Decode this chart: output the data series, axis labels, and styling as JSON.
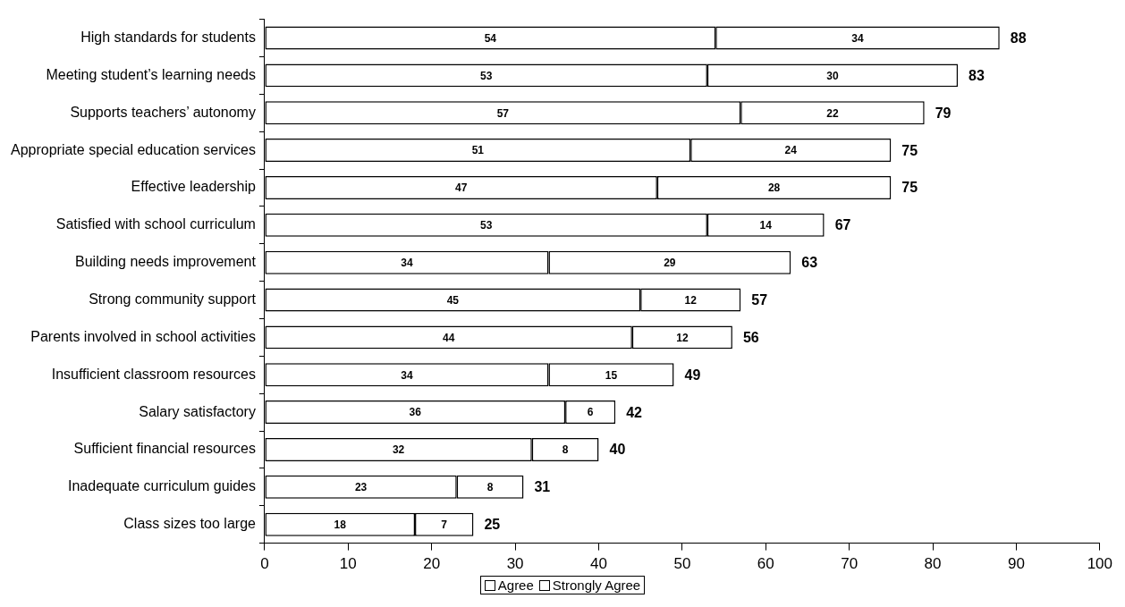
{
  "chart_data": {
    "type": "bar",
    "orientation": "horizontal",
    "stacked": true,
    "categories": [
      "High standards for students",
      "Meeting student’s learning needs",
      "Supports teachers’ autonomy",
      "Appropriate special education services",
      "Effective leadership",
      "Satisfied with school curriculum",
      "Building needs improvement",
      "Strong community support",
      "Parents involved in school activities",
      "Insufficient classroom resources",
      "Salary satisfactory",
      "Sufficient financial resources",
      "Inadequate curriculum guides",
      "Class sizes too large"
    ],
    "series": [
      {
        "name": "Agree",
        "color": "#ffffff",
        "values": [
          54,
          53,
          57,
          51,
          47,
          53,
          34,
          45,
          44,
          34,
          36,
          32,
          23,
          18
        ]
      },
      {
        "name": "Strongly Agree",
        "color": "#ffffff",
        "values": [
          34,
          30,
          22,
          24,
          28,
          14,
          29,
          12,
          12,
          15,
          6,
          8,
          8,
          7
        ]
      }
    ],
    "totals": [
      "88",
      "83",
      "79",
      "75",
      "75",
      "67",
      "63",
      "57",
      "56",
      "49",
      "42",
      "40",
      "31",
      "25"
    ],
    "data_labels": true,
    "xlim": [
      0,
      100
    ],
    "xticks": [
      0,
      10,
      20,
      30,
      40,
      50,
      60,
      70,
      80,
      90,
      100
    ],
    "grid": false,
    "legend": "bottom"
  }
}
